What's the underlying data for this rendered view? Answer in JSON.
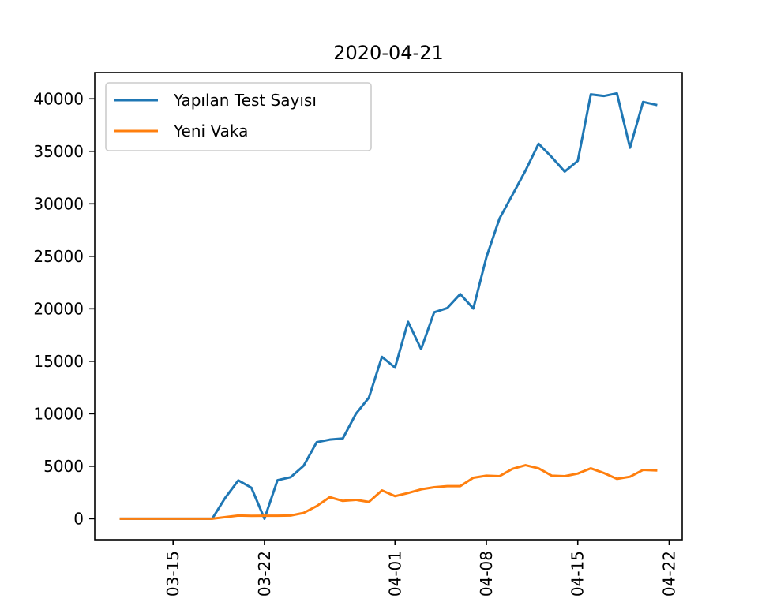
{
  "chart_data": {
    "type": "line",
    "title": "2020-04-21",
    "xlabel": "",
    "ylabel": "",
    "x_start": "2020-03-11",
    "x": [
      "2020-03-11",
      "2020-03-12",
      "2020-03-13",
      "2020-03-14",
      "2020-03-15",
      "2020-03-16",
      "2020-03-17",
      "2020-03-18",
      "2020-03-19",
      "2020-03-20",
      "2020-03-21",
      "2020-03-22",
      "2020-03-23",
      "2020-03-24",
      "2020-03-25",
      "2020-03-26",
      "2020-03-27",
      "2020-03-28",
      "2020-03-29",
      "2020-03-30",
      "2020-03-31",
      "2020-04-01",
      "2020-04-02",
      "2020-04-03",
      "2020-04-04",
      "2020-04-05",
      "2020-04-06",
      "2020-04-07",
      "2020-04-08",
      "2020-04-09",
      "2020-04-10",
      "2020-04-11",
      "2020-04-12",
      "2020-04-13",
      "2020-04-14",
      "2020-04-15",
      "2020-04-16",
      "2020-04-17",
      "2020-04-18",
      "2020-04-19",
      "2020-04-20",
      "2020-04-21"
    ],
    "xlim": [
      "2020-03-09",
      "2020-04-23"
    ],
    "ylim": [
      -2000,
      42500
    ],
    "x_ticks": [
      "2020-03-15",
      "2020-03-22",
      "2020-04-01",
      "2020-04-08",
      "2020-04-15",
      "2020-04-22"
    ],
    "x_tick_labels": [
      "03-15",
      "03-22",
      "04-01",
      "04-08",
      "04-15",
      "04-22"
    ],
    "y_ticks": [
      0,
      5000,
      10000,
      15000,
      20000,
      25000,
      30000,
      35000,
      40000
    ],
    "y_tick_labels": [
      "0",
      "5000",
      "10000",
      "15000",
      "20000",
      "25000",
      "30000",
      "35000",
      "40000"
    ],
    "grid": false,
    "legend_position": "top-left",
    "series": [
      {
        "name": "Yapılan Test Sayısı",
        "color": "#1f77b4",
        "values": [
          0,
          0,
          0,
          0,
          0,
          0,
          0,
          0,
          2000,
          3656,
          2952,
          0,
          3672,
          3952,
          5035,
          7286,
          7533,
          7641,
          9982,
          11535,
          15422,
          14396,
          18757,
          16160,
          19664,
          20065,
          21400,
          20023,
          24900,
          28578,
          30864,
          33170,
          35720,
          34456,
          33070,
          34090,
          40427,
          40270,
          40520,
          35344,
          39703,
          39429
        ]
      },
      {
        "name": "Yeni Vaka",
        "color": "#ff7f0e",
        "values": [
          0,
          0,
          0,
          0,
          0,
          0,
          0,
          0,
          150,
          300,
          270,
          280,
          280,
          300,
          550,
          1200,
          2050,
          1700,
          1800,
          1600,
          2700,
          2150,
          2450,
          2800,
          3000,
          3100,
          3100,
          3900,
          4100,
          4050,
          4750,
          5100,
          4800,
          4100,
          4050,
          4300,
          4800,
          4350,
          3800,
          4000,
          4650,
          4600
        ]
      }
    ]
  }
}
